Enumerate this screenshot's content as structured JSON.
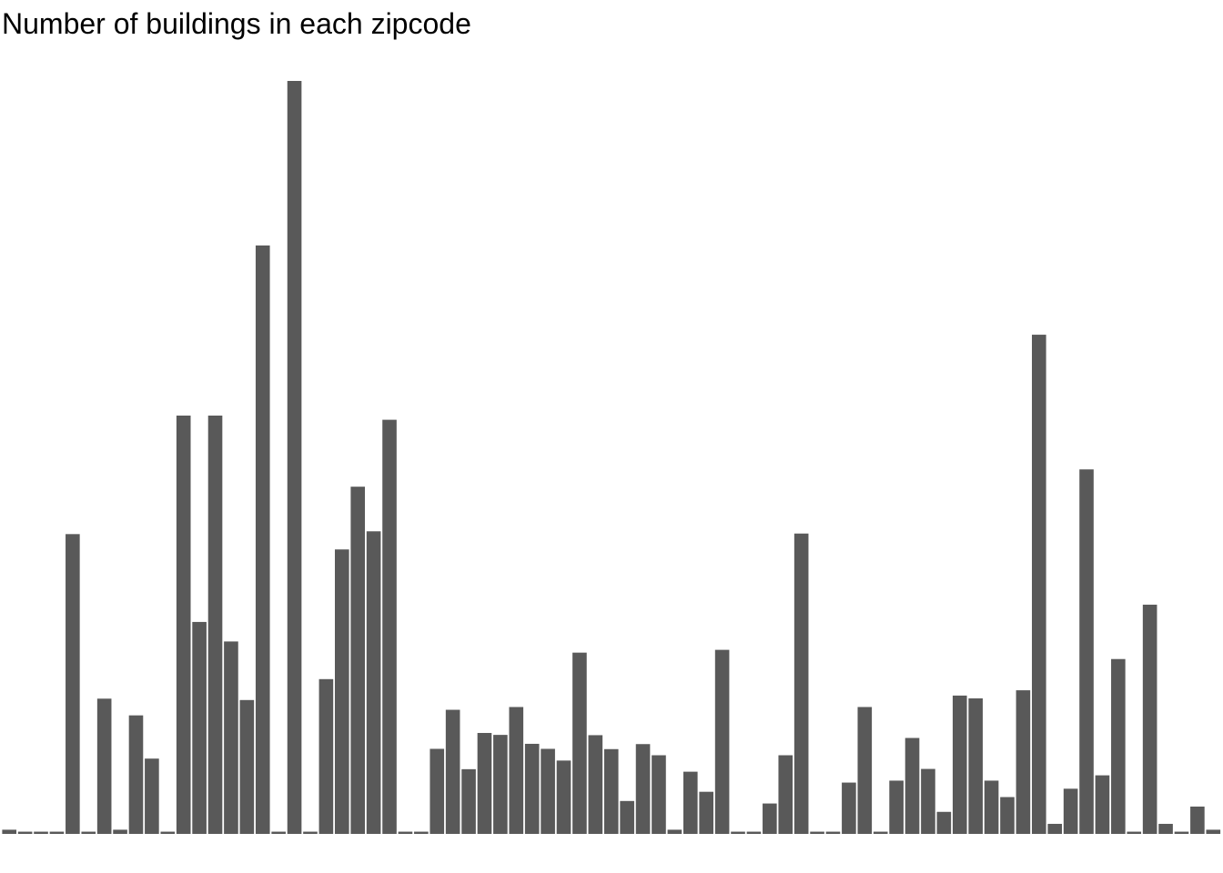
{
  "chart_data": {
    "type": "bar",
    "title": "Number of buildings in each zipcode",
    "xlabel": "",
    "ylabel": "",
    "axes_visible": false,
    "grid": false,
    "bar_color": "#595959",
    "ylim": [
      0,
      270
    ],
    "values": [
      1.5,
      0.8,
      0.8,
      0.8,
      107.5,
      0.8,
      48.5,
      1.5,
      42.5,
      27,
      0.8,
      150,
      76,
      150,
      69,
      48,
      211,
      0.8,
      270,
      0.8,
      55.5,
      102,
      124.5,
      108.5,
      148.5,
      0.8,
      0.8,
      30.5,
      44.5,
      23.2,
      36.2,
      35.5,
      45.5,
      32.3,
      30.5,
      26.3,
      65,
      35.4,
      30.4,
      11.8,
      32.2,
      28.2,
      1.5,
      22.3,
      15.1,
      66,
      0.8,
      0.8,
      10.9,
      28.2,
      107.7,
      0.8,
      0.8,
      18.4,
      45.5,
      0.8,
      19.1,
      34.4,
      23.3,
      7.9,
      49.6,
      48.6,
      19.1,
      13.2,
      51.5,
      179,
      3.6,
      16.2,
      130.7,
      21,
      62.7,
      0.8,
      82.2,
      3.6,
      0.8,
      9.8,
      1.5
    ]
  }
}
